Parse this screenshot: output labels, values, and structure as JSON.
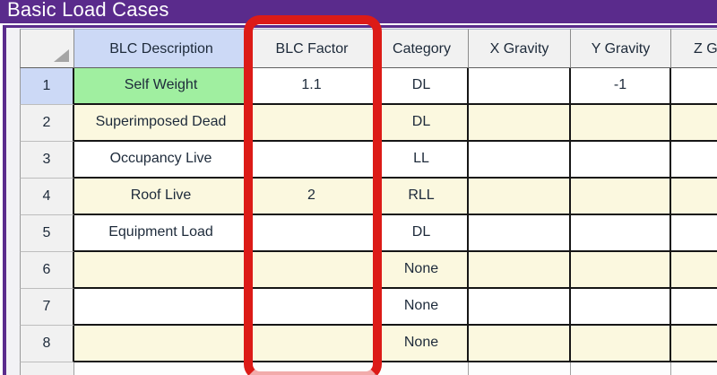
{
  "window": {
    "title": "Basic Load Cases"
  },
  "grid": {
    "columns": [
      {
        "key": "num",
        "label": ""
      },
      {
        "key": "desc",
        "label": "BLC Description"
      },
      {
        "key": "factor",
        "label": "BLC Factor"
      },
      {
        "key": "category",
        "label": "Category"
      },
      {
        "key": "x_gravity",
        "label": "X Gravity"
      },
      {
        "key": "y_gravity",
        "label": "Y Gravity"
      },
      {
        "key": "z_gravity",
        "label": "Z Gravity"
      }
    ],
    "rows": [
      {
        "num": "1",
        "desc": "Self Weight",
        "factor": "1.1",
        "category": "DL",
        "x_gravity": "",
        "y_gravity": "-1",
        "z_gravity": ""
      },
      {
        "num": "2",
        "desc": "Superimposed Dead",
        "factor": "",
        "category": "DL",
        "x_gravity": "",
        "y_gravity": "",
        "z_gravity": ""
      },
      {
        "num": "3",
        "desc": "Occupancy Live",
        "factor": "",
        "category": "LL",
        "x_gravity": "",
        "y_gravity": "",
        "z_gravity": ""
      },
      {
        "num": "4",
        "desc": "Roof Live",
        "factor": "2",
        "category": "RLL",
        "x_gravity": "",
        "y_gravity": "",
        "z_gravity": ""
      },
      {
        "num": "5",
        "desc": "Equipment Load",
        "factor": "",
        "category": "DL",
        "x_gravity": "",
        "y_gravity": "",
        "z_gravity": ""
      },
      {
        "num": "6",
        "desc": "",
        "factor": "",
        "category": "None",
        "x_gravity": "",
        "y_gravity": "",
        "z_gravity": ""
      },
      {
        "num": "7",
        "desc": "",
        "factor": "",
        "category": "None",
        "x_gravity": "",
        "y_gravity": "",
        "z_gravity": ""
      },
      {
        "num": "8",
        "desc": "",
        "factor": "",
        "category": "None",
        "x_gravity": "",
        "y_gravity": "",
        "z_gravity": ""
      }
    ],
    "selection": {
      "row": "1",
      "column": "BLC Description",
      "cell_value": "Self Weight"
    }
  },
  "annotation": {
    "type": "highlight-rectangle",
    "highlighted_column": "BLC Factor",
    "color": "#dc1b17"
  },
  "colors": {
    "titlebar": "#5a2b8c",
    "header_bg": "#f1f1f1",
    "selected_header_bg": "#ccd9f6",
    "selected_cell_bg": "#a0efa0",
    "row_alt_bg": "#fbf8df",
    "annotation_red": "#dc1b17"
  }
}
